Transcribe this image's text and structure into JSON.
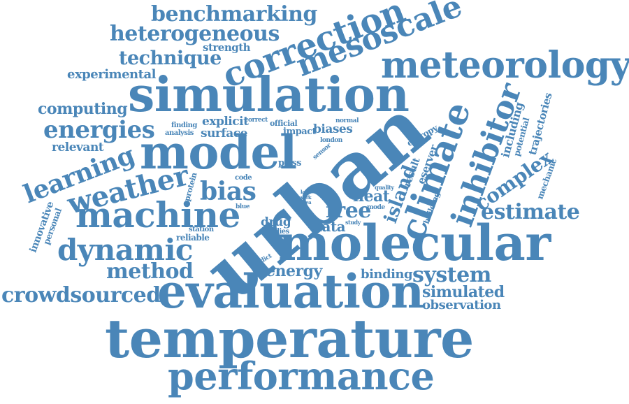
{
  "cloud": {
    "color": "#4a86b8",
    "words": {
      "urban": "urban",
      "temperature": "temperature",
      "simulation": "simulation",
      "molecular": "molecular",
      "evaluation": "evaluation",
      "model": "model",
      "performance": "performance",
      "meteorology": "meteorology",
      "correction": "correction",
      "mesoscale": "mesoscale",
      "machine": "machine",
      "climate": "climate",
      "inhibitor": "inhibitor",
      "weather": "weather",
      "dynamic": "dynamic",
      "benchmarking": "benchmarking",
      "heterogeneous": "heterogeneous",
      "learning": "learning",
      "energies": "energies",
      "method": "method",
      "crowdsourced": "crowdsourced",
      "bias": "bias",
      "technique": "technique",
      "computing": "computing",
      "estimate": "estimate",
      "system": "system",
      "free": "free",
      "complex": "complex",
      "island": "island",
      "simulated": "simulated",
      "experimental": "experimental",
      "observation": "observation",
      "energy": "energy",
      "data": "data",
      "heat": "heat",
      "relevant": "relevant",
      "surface": "surface",
      "explicit": "explicit",
      "biases": "biases",
      "binding": "binding",
      "including": "including",
      "trajectories": "trajectories",
      "strength": "strength",
      "drug": "drug",
      "impact": "impact",
      "result": "result",
      "potential": "potential",
      "eserver": "eserver",
      "innovative": "innovative",
      "personal": "personal",
      "pwss": "pwss",
      "reliable": "reliable",
      "station": "station",
      "mechanic": "mechanic",
      "studies": "studies",
      "building": "building",
      "entropy": "entropy",
      "protein": "protein",
      "finding": "finding",
      "analysis": "analysis",
      "correct": "correct",
      "official": "official",
      "normal": "normal",
      "london": "london",
      "sensor": "sensor",
      "code": "code",
      "blue": "blue",
      "quality": "quality",
      "lack": "lack",
      "work": "work",
      "area": "area",
      "mode": "mode",
      "study": "study",
      "predict": "predict"
    }
  }
}
